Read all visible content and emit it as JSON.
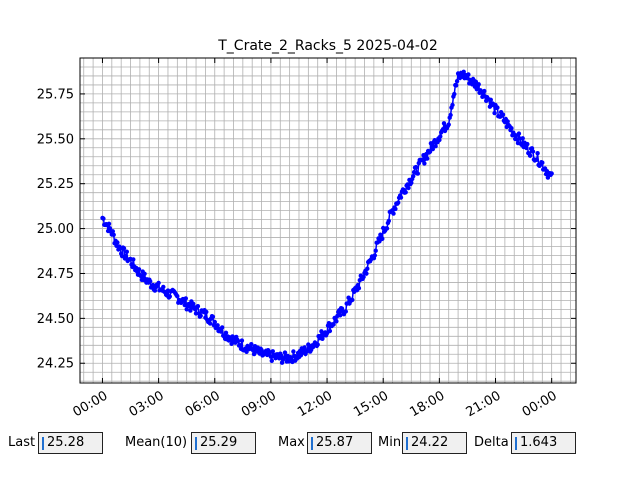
{
  "chart_data": {
    "type": "line",
    "title": "T_Crate_2_Racks_5 2025-04-02",
    "xlabel": "",
    "ylabel": "",
    "x_tick_labels": [
      "00:00",
      "03:00",
      "06:00",
      "09:00",
      "12:00",
      "15:00",
      "18:00",
      "21:00",
      "00:00"
    ],
    "x_tick_hours": [
      0,
      3,
      6,
      9,
      12,
      15,
      18,
      21,
      24
    ],
    "xlim_hours": [
      -1.2,
      25.3
    ],
    "y_ticks": [
      24.25,
      24.5,
      24.75,
      25.0,
      25.25,
      25.5,
      25.75
    ],
    "y_tick_labels": [
      "24.25",
      "24.50",
      "24.75",
      "25.00",
      "25.25",
      "25.50",
      "25.75"
    ],
    "ylim": [
      24.14,
      25.95
    ],
    "grid": true,
    "grid_minor": true,
    "series": [
      {
        "color": "#0000ff",
        "marker": "circle",
        "x_hours": [
          0.0,
          0.25,
          0.5,
          0.75,
          1.0,
          1.5,
          2.0,
          2.5,
          3.0,
          3.5,
          4.0,
          4.5,
          5.0,
          5.5,
          6.0,
          6.5,
          7.0,
          7.5,
          8.0,
          8.5,
          9.0,
          9.5,
          10.0,
          10.5,
          11.0,
          11.5,
          12.0,
          12.5,
          13.0,
          13.5,
          14.0,
          14.5,
          15.0,
          15.5,
          16.0,
          16.5,
          17.0,
          17.5,
          18.0,
          18.5,
          18.75,
          19.0,
          19.25,
          19.5,
          20.0,
          20.5,
          21.0,
          21.5,
          22.0,
          22.5,
          23.0,
          23.5,
          24.0
        ],
        "y_values": [
          25.06,
          25.02,
          24.98,
          24.92,
          24.88,
          24.82,
          24.75,
          24.7,
          24.67,
          24.64,
          24.62,
          24.58,
          24.55,
          24.52,
          24.48,
          24.42,
          24.38,
          24.35,
          24.33,
          24.3,
          24.29,
          24.28,
          24.28,
          24.3,
          24.33,
          24.38,
          24.44,
          24.5,
          24.56,
          24.65,
          24.75,
          24.86,
          24.98,
          25.1,
          25.2,
          25.28,
          25.36,
          25.44,
          25.52,
          25.6,
          25.74,
          25.84,
          25.86,
          25.84,
          25.8,
          25.74,
          25.66,
          25.6,
          25.53,
          25.47,
          25.42,
          25.36,
          25.28
        ]
      }
    ]
  },
  "stats": {
    "last_label": "Last",
    "last_value": "25.28",
    "mean_label": "Mean(10)",
    "mean_value": "25.29",
    "max_label": "Max",
    "max_value": "25.87",
    "min_label": "Min",
    "min_value": "24.22",
    "delta_label": "Delta",
    "delta_value": "1.643"
  }
}
